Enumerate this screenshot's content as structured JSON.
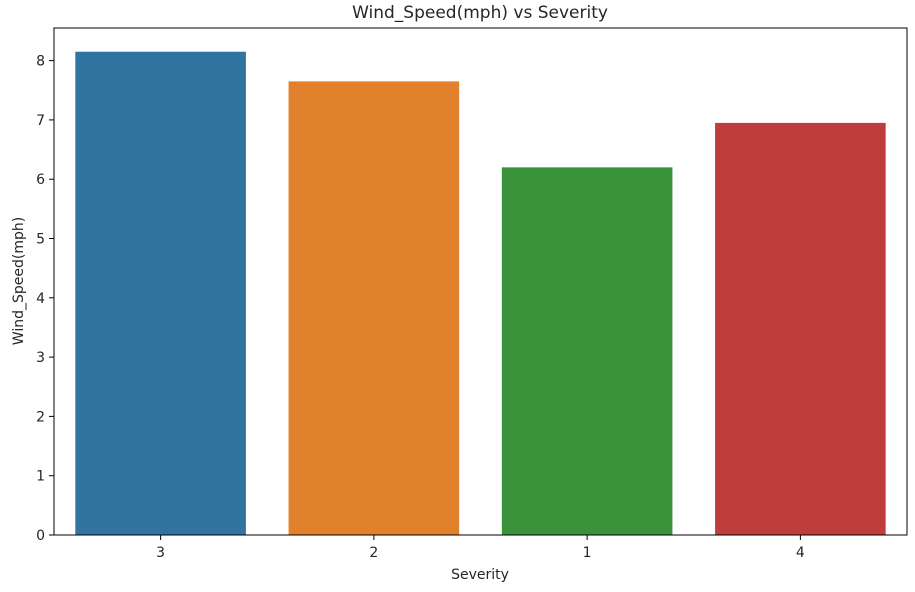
{
  "chart_data": {
    "type": "bar",
    "title": "Wind_Speed(mph) vs Severity",
    "xlabel": "Severity",
    "ylabel": "Wind_Speed(mph)",
    "categories": [
      "3",
      "2",
      "1",
      "4"
    ],
    "values": [
      8.15,
      7.65,
      6.2,
      6.95
    ],
    "colors": [
      "#3274a1",
      "#e1812c",
      "#3a923a",
      "#c03d3e"
    ],
    "ylim": [
      0,
      8.55
    ],
    "yticks": [
      "0",
      "1",
      "2",
      "3",
      "4",
      "5",
      "6",
      "7",
      "8"
    ],
    "grid": false,
    "legend": "none"
  }
}
